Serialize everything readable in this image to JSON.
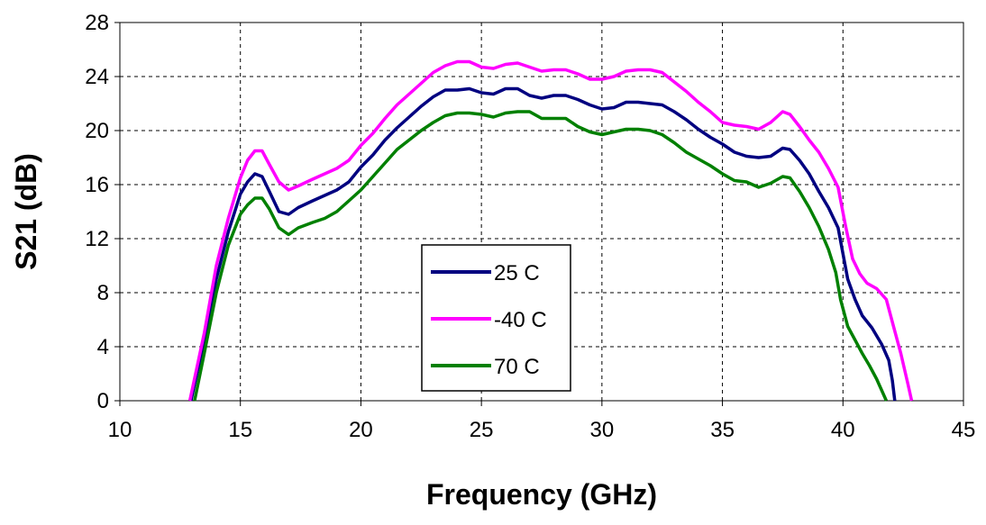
{
  "chart_data": {
    "type": "line",
    "title": "",
    "xlabel": "Frequency (GHz)",
    "ylabel": "S21 (dB)",
    "xlim": [
      10,
      45
    ],
    "ylim": [
      0,
      28
    ],
    "xticks": [
      10,
      15,
      20,
      25,
      30,
      35,
      40,
      45
    ],
    "yticks": [
      0,
      4,
      8,
      12,
      16,
      20,
      24,
      28
    ],
    "grid": true,
    "legend_position": "center",
    "series": [
      {
        "name": "25 C",
        "color": "#000080",
        "x": [
          12.95,
          13.5,
          14.0,
          14.5,
          15.0,
          15.3,
          15.6,
          15.9,
          16.2,
          16.6,
          17.0,
          17.4,
          18.0,
          18.5,
          19.0,
          19.5,
          20.0,
          20.5,
          21.0,
          21.5,
          22.0,
          22.5,
          23.0,
          23.5,
          24.0,
          24.5,
          25.0,
          25.5,
          26.0,
          26.5,
          27.0,
          27.5,
          28.0,
          28.5,
          29.0,
          29.5,
          30.0,
          30.5,
          31.0,
          31.5,
          32.0,
          32.5,
          33.0,
          33.5,
          34.0,
          34.5,
          35.0,
          35.5,
          36.0,
          36.5,
          37.0,
          37.5,
          37.8,
          38.2,
          38.6,
          39.0,
          39.4,
          39.8,
          40.2,
          40.5,
          40.8,
          41.2,
          41.6,
          41.9,
          42.05,
          42.15
        ],
        "values": [
          0.0,
          4.5,
          9.0,
          12.5,
          15.3,
          16.2,
          16.8,
          16.6,
          15.5,
          14.0,
          13.8,
          14.3,
          14.8,
          15.2,
          15.6,
          16.2,
          17.3,
          18.2,
          19.3,
          20.2,
          21.0,
          21.8,
          22.5,
          23.0,
          23.0,
          23.1,
          22.8,
          22.7,
          23.1,
          23.1,
          22.6,
          22.4,
          22.6,
          22.6,
          22.3,
          21.9,
          21.6,
          21.7,
          22.1,
          22.1,
          22.0,
          21.9,
          21.4,
          20.8,
          20.1,
          19.5,
          19.0,
          18.4,
          18.1,
          18.0,
          18.1,
          18.7,
          18.6,
          17.8,
          16.8,
          15.5,
          14.3,
          12.8,
          9.0,
          7.5,
          6.3,
          5.4,
          4.2,
          3.0,
          1.5,
          0.0
        ]
      },
      {
        "name": "-40 C",
        "color": "#ff00ff",
        "x": [
          12.9,
          13.5,
          14.0,
          14.5,
          15.0,
          15.3,
          15.6,
          15.9,
          16.2,
          16.6,
          17.0,
          17.4,
          18.0,
          18.5,
          19.0,
          19.5,
          20.0,
          20.5,
          21.0,
          21.5,
          22.0,
          22.5,
          23.0,
          23.5,
          24.0,
          24.5,
          25.0,
          25.5,
          26.0,
          26.5,
          27.0,
          27.5,
          28.0,
          28.5,
          29.0,
          29.5,
          30.0,
          30.5,
          31.0,
          31.5,
          32.0,
          32.5,
          33.0,
          33.5,
          34.0,
          34.5,
          35.0,
          35.5,
          36.0,
          36.5,
          37.0,
          37.5,
          37.8,
          38.2,
          38.6,
          39.0,
          39.4,
          39.8,
          40.1,
          40.4,
          40.7,
          41.0,
          41.4,
          41.8,
          42.1,
          42.4,
          42.7,
          42.85
        ],
        "values": [
          0.0,
          5.0,
          10.0,
          13.5,
          16.5,
          17.8,
          18.5,
          18.5,
          17.5,
          16.2,
          15.6,
          15.9,
          16.4,
          16.8,
          17.2,
          17.8,
          18.9,
          19.8,
          20.9,
          21.9,
          22.7,
          23.5,
          24.3,
          24.8,
          25.1,
          25.1,
          24.7,
          24.6,
          24.9,
          25.0,
          24.7,
          24.4,
          24.5,
          24.5,
          24.2,
          23.8,
          23.8,
          24.0,
          24.4,
          24.5,
          24.5,
          24.3,
          23.6,
          22.9,
          22.1,
          21.4,
          20.6,
          20.4,
          20.3,
          20.1,
          20.6,
          21.4,
          21.2,
          20.3,
          19.3,
          18.4,
          17.2,
          15.8,
          13.0,
          10.5,
          9.4,
          8.7,
          8.3,
          7.5,
          5.5,
          3.5,
          1.2,
          0.0
        ]
      },
      {
        "name": "70 C",
        "color": "#008000",
        "x": [
          13.1,
          13.5,
          14.0,
          14.5,
          15.0,
          15.3,
          15.6,
          15.9,
          16.2,
          16.6,
          17.0,
          17.4,
          18.0,
          18.5,
          19.0,
          19.5,
          20.0,
          20.5,
          21.0,
          21.5,
          22.0,
          22.5,
          23.0,
          23.5,
          24.0,
          24.5,
          25.0,
          25.5,
          26.0,
          26.5,
          27.0,
          27.5,
          28.0,
          28.5,
          29.0,
          29.5,
          30.0,
          30.5,
          31.0,
          31.5,
          32.0,
          32.5,
          33.0,
          33.5,
          34.0,
          34.5,
          35.0,
          35.5,
          36.0,
          36.5,
          37.0,
          37.5,
          37.8,
          38.2,
          38.6,
          39.0,
          39.4,
          39.7,
          39.9,
          40.2,
          40.5,
          40.8,
          41.1,
          41.4,
          41.65,
          41.8
        ],
        "values": [
          0.0,
          3.5,
          8.0,
          11.5,
          13.8,
          14.5,
          15.0,
          15.0,
          14.2,
          12.8,
          12.3,
          12.8,
          13.2,
          13.5,
          14.0,
          14.8,
          15.6,
          16.6,
          17.6,
          18.6,
          19.3,
          20.0,
          20.6,
          21.1,
          21.3,
          21.3,
          21.2,
          21.0,
          21.3,
          21.4,
          21.4,
          20.9,
          20.9,
          20.9,
          20.3,
          19.9,
          19.7,
          19.9,
          20.1,
          20.1,
          20.0,
          19.7,
          19.1,
          18.4,
          17.9,
          17.4,
          16.8,
          16.3,
          16.2,
          15.8,
          16.1,
          16.6,
          16.5,
          15.5,
          14.3,
          12.9,
          11.2,
          9.5,
          7.5,
          5.5,
          4.5,
          3.5,
          2.6,
          1.6,
          0.6,
          0.0
        ]
      }
    ]
  }
}
